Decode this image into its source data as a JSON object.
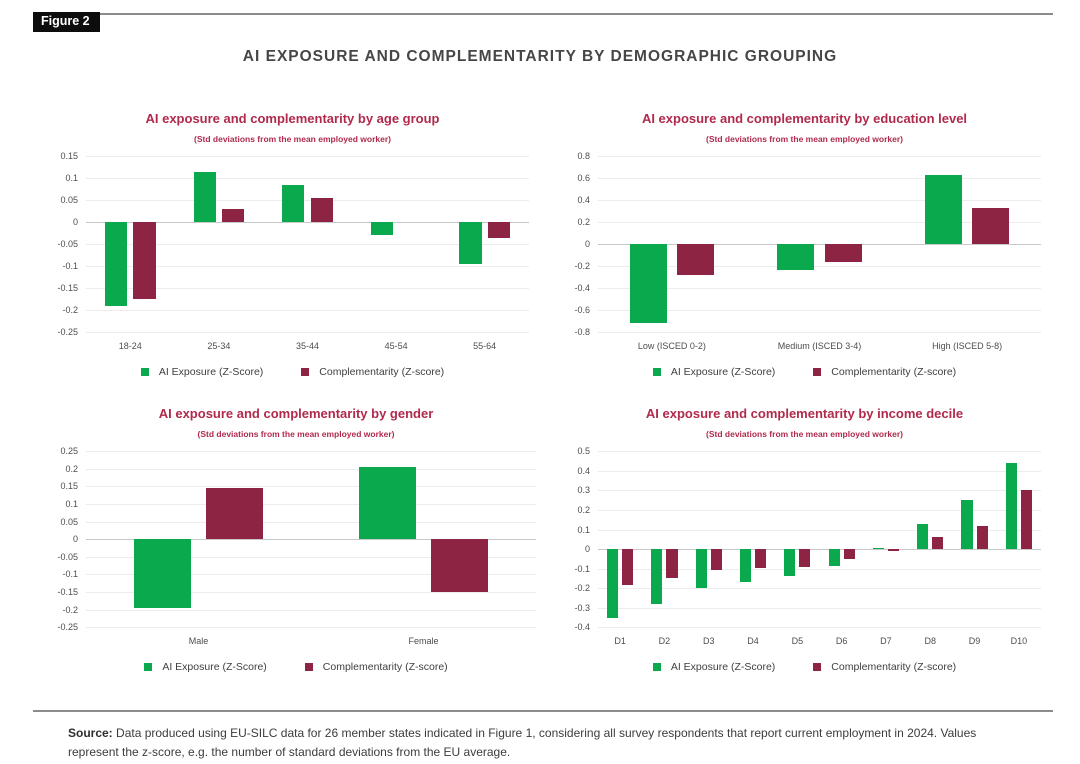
{
  "figure_label": "Figure 2",
  "main_title": "AI EXPOSURE AND COMPLEMENTARITY BY DEMOGRAPHIC GROUPING",
  "legend": {
    "exposure_label": "AI Exposure (Z-Score)",
    "complementarity_label": "Complementarity (Z-score)"
  },
  "colors": {
    "exposure": "#0aa94e",
    "complementarity": "#8e2443",
    "chart_title": "#b02a4c",
    "gridline": "#ececec",
    "zero_line": "#c8c8c8"
  },
  "source": {
    "prefix": "Source:",
    "text": " Data produced using EU-SILC data for 26 member states indicated in Figure 1, considering all survey respondents that report current employment in 2024.  Values represent the z-score, e.g. the number of standard deviations from the EU average."
  },
  "chart_data": [
    {
      "id": "age",
      "type": "bar",
      "title": "AI exposure and complementarity by age group",
      "subtitle": "(Std deviations from the mean employed worker)",
      "categories": [
        "18-24",
        "25-34",
        "35-44",
        "45-54",
        "55-64"
      ],
      "series": [
        {
          "name": "AI Exposure (Z-Score)",
          "values": [
            -0.19,
            0.115,
            0.085,
            -0.03,
            -0.095
          ]
        },
        {
          "name": "Complementarity (Z-score)",
          "values": [
            -0.175,
            0.03,
            0.055,
            0,
            -0.035
          ]
        }
      ],
      "ylim": [
        -0.25,
        0.15
      ],
      "ystep": 0.05,
      "grid": true,
      "legend_position": "bottom"
    },
    {
      "id": "education",
      "type": "bar",
      "title": "AI exposure and complementarity by education level",
      "subtitle": "(Std deviations from the mean employed worker)",
      "categories": [
        "Low (ISCED 0-2)",
        "Medium (ISCED 3-4)",
        "High (ISCED 5-8)"
      ],
      "series": [
        {
          "name": "AI Exposure (Z-Score)",
          "values": [
            -0.72,
            -0.23,
            0.63
          ]
        },
        {
          "name": "Complementarity (Z-score)",
          "values": [
            -0.28,
            -0.16,
            0.33
          ]
        }
      ],
      "ylim": [
        -0.8,
        0.8
      ],
      "ystep": 0.2,
      "grid": true,
      "legend_position": "bottom"
    },
    {
      "id": "gender",
      "type": "bar",
      "title": "AI exposure and complementarity by gender",
      "subtitle": "(Std deviations from the mean employed worker)",
      "categories": [
        "Male",
        "Female"
      ],
      "series": [
        {
          "name": "AI Exposure (Z-Score)",
          "values": [
            -0.195,
            0.205
          ]
        },
        {
          "name": "Complementarity (Z-score)",
          "values": [
            0.145,
            -0.15
          ]
        }
      ],
      "ylim": [
        -0.25,
        0.25
      ],
      "ystep": 0.05,
      "grid": true,
      "legend_position": "bottom"
    },
    {
      "id": "income",
      "type": "bar",
      "title": "AI exposure and complementarity by income decile",
      "subtitle": "(Std deviations from the mean employed worker)",
      "categories": [
        "D1",
        "D2",
        "D3",
        "D4",
        "D5",
        "D6",
        "D7",
        "D8",
        "D9",
        "D10"
      ],
      "series": [
        {
          "name": "AI Exposure (Z-Score)",
          "values": [
            -0.35,
            -0.28,
            -0.2,
            -0.17,
            -0.14,
            -0.085,
            0.005,
            0.13,
            0.25,
            0.44
          ]
        },
        {
          "name": "Complementarity (Z-score)",
          "values": [
            -0.185,
            -0.15,
            -0.105,
            -0.095,
            -0.09,
            -0.05,
            -0.01,
            0.06,
            0.12,
            0.3
          ]
        }
      ],
      "ylim": [
        -0.4,
        0.5
      ],
      "ystep": 0.1,
      "grid": true,
      "legend_position": "bottom"
    }
  ]
}
